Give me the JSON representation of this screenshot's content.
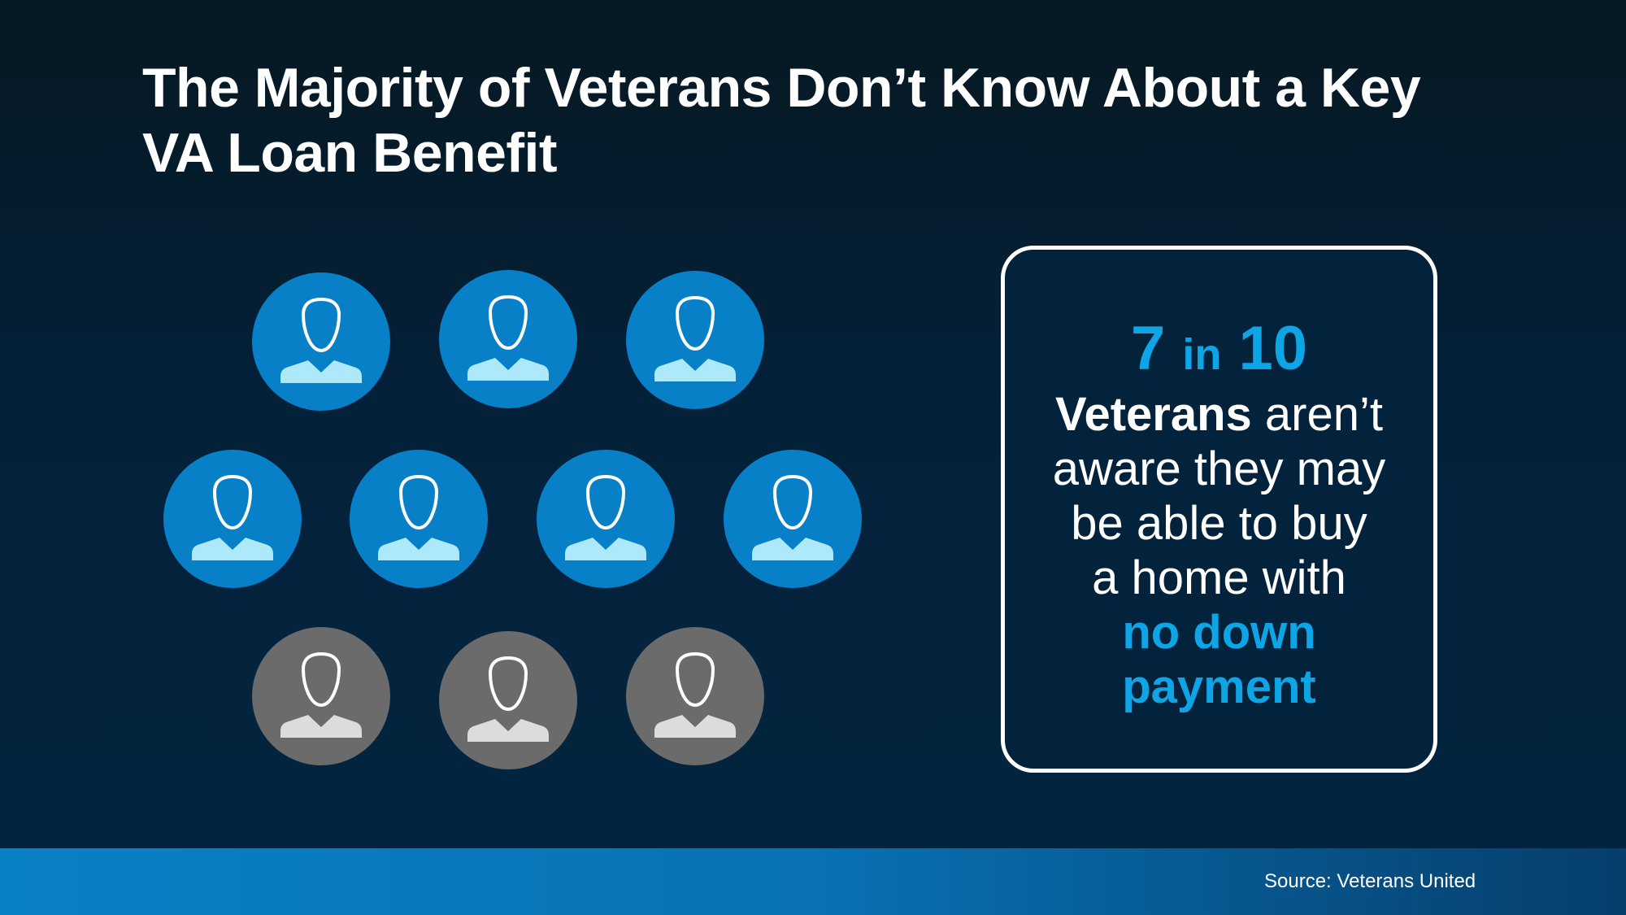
{
  "title": {
    "line1": "The Majority of Veterans Don’t Know About a Key",
    "line2": "VA Loan Benefit"
  },
  "people_graphic": {
    "icon": "person-icon",
    "total": 10,
    "highlighted": 7,
    "colors": {
      "highlighted_circle": "#0880c8",
      "highlighted_body": "#aee8fb",
      "other_circle": "#6b6b6b",
      "other_body": "#dcdcdc"
    }
  },
  "callout": {
    "stat_num1": "7",
    "stat_in": "in",
    "stat_num2": "10",
    "bold_word": "Veterans",
    "line1_rest": " aren’t",
    "line2": "aware they may",
    "line3": "be able to buy",
    "line4": "a home with",
    "highlight1": "no down",
    "highlight2": "payment",
    "accent_color": "#0ea5e6"
  },
  "footer": {
    "source": "Source: Veterans United"
  }
}
